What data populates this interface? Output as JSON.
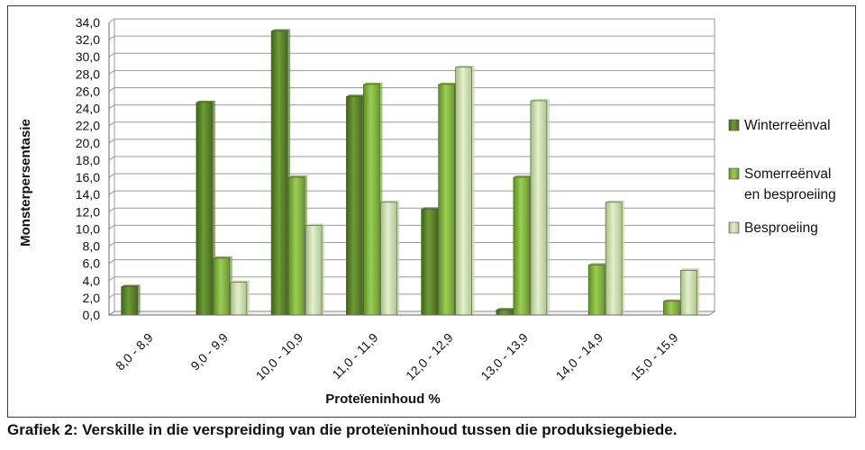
{
  "caption": "Grafiek 2: Verskille in die verspreiding van die proteïeninhoud tussen die produksiegebiede.",
  "chart_data": {
    "type": "bar",
    "title": "",
    "xlabel": "Proteïeninhoud %",
    "ylabel": "Monsterpersentasie",
    "ylim": [
      0,
      34
    ],
    "ytick_step": 2,
    "ytick_labels": [
      "0,0",
      "2,0",
      "4,0",
      "6,0",
      "8,0",
      "10,0",
      "12,0",
      "14,0",
      "16,0",
      "18,0",
      "20,0",
      "22,0",
      "24,0",
      "26,0",
      "28,0",
      "30,0",
      "32,0",
      "34,0"
    ],
    "grid": true,
    "legend_position": "right",
    "categories": [
      "8,0 - 8,9",
      "9,0 - 9,9",
      "10,0 - 10,9",
      "11,0 - 11,9",
      "12,0 - 12,9",
      "13,0 - 13,9",
      "14,0 - 14,9",
      "15,0 - 15,9"
    ],
    "series": [
      {
        "name": "Winterreënval",
        "color": "#5e8a2a",
        "values": [
          3.3,
          24.7,
          33.0,
          25.4,
          12.3,
          0.6,
          0,
          0
        ]
      },
      {
        "name": "Somerreënval en besproeiing",
        "name_lines": [
          "Somerreënval",
          "en besproeiing"
        ],
        "color": "#7fb03e",
        "values": [
          0,
          6.6,
          16.0,
          26.8,
          26.8,
          16.0,
          5.8,
          1.6
        ]
      },
      {
        "name": "Besproeiing",
        "color": "#c6d9a2",
        "values": [
          0,
          3.8,
          10.4,
          13.1,
          28.8,
          24.9,
          13.1,
          5.2
        ]
      }
    ]
  }
}
